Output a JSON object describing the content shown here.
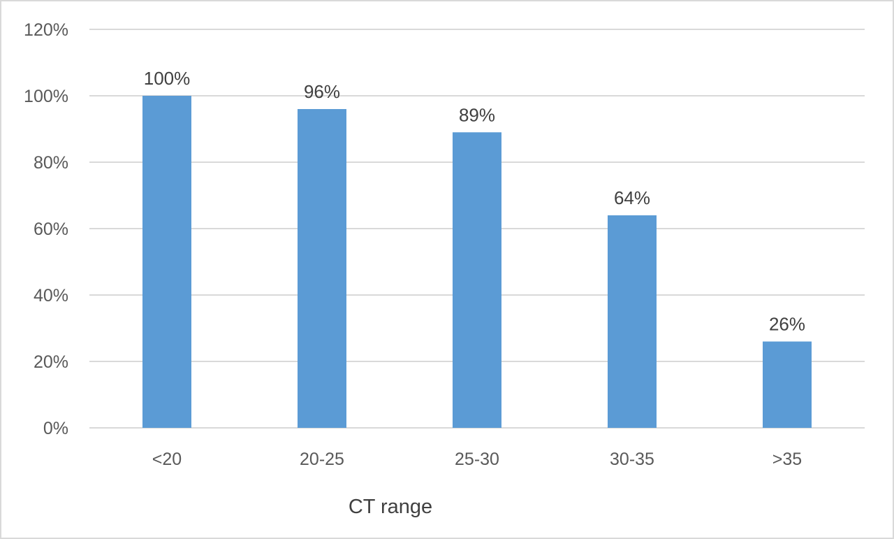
{
  "chart_data": {
    "type": "bar",
    "title": "",
    "xlabel": "CT range",
    "ylabel": "",
    "categories": [
      "<20",
      "20-25",
      "25-30",
      "30-35",
      ">35"
    ],
    "series": [
      {
        "values": [
          100,
          96,
          89,
          64,
          26
        ],
        "data_labels": [
          "100%",
          "96%",
          "89%",
          "64%",
          "26%"
        ]
      }
    ],
    "ylim": [
      0,
      120
    ],
    "y_ticks": [
      0,
      20,
      40,
      60,
      80,
      100,
      120
    ],
    "y_tick_labels": [
      "0%",
      "20%",
      "40%",
      "60%",
      "80%",
      "100%",
      "120%"
    ],
    "grid": true,
    "legend": "none",
    "colors": {
      "bar": "#5b9bd5",
      "grid": "#d9d9d9",
      "tick_text": "#595959",
      "label_text": "#404040"
    }
  }
}
